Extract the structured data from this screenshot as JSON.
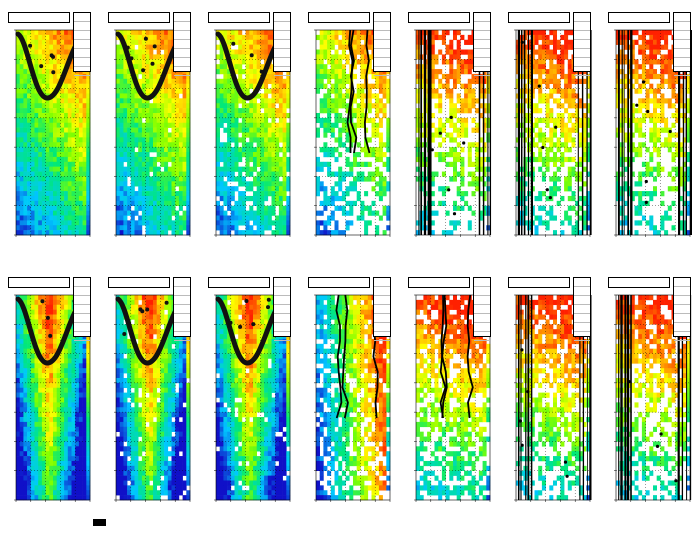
{
  "chart_data": [
    {
      "type": "heatmap",
      "colormap": "rainbow",
      "hot_region": "top-right",
      "overlay": "curve",
      "sparsity": 0.0
    },
    {
      "type": "heatmap",
      "colormap": "rainbow",
      "hot_region": "top-right",
      "overlay": "curve",
      "sparsity": 0.05
    },
    {
      "type": "heatmap",
      "colormap": "rainbow",
      "hot_region": "top-right",
      "overlay": "curve",
      "sparsity": 0.1
    },
    {
      "type": "heatmap",
      "colormap": "rainbow",
      "hot_region": "top-right",
      "overlay": "vertical",
      "sparsity": 0.35
    },
    {
      "type": "heatmap",
      "colormap": "rainbow",
      "hot_region": "top",
      "overlay": "stripes",
      "sparsity": 0.45
    },
    {
      "type": "heatmap",
      "colormap": "rainbow",
      "hot_region": "top",
      "overlay": "stripes",
      "sparsity": 0.4
    },
    {
      "type": "heatmap",
      "colormap": "rainbow",
      "hot_region": "top",
      "overlay": "stripes",
      "sparsity": 0.45
    },
    {
      "type": "heatmap",
      "colormap": "rainbow",
      "hot_region": "center",
      "overlay": "curve",
      "sparsity": 0.0
    },
    {
      "type": "heatmap",
      "colormap": "rainbow",
      "hot_region": "center",
      "overlay": "curve",
      "sparsity": 0.05
    },
    {
      "type": "heatmap",
      "colormap": "rainbow",
      "hot_region": "center",
      "overlay": "curve",
      "sparsity": 0.05
    },
    {
      "type": "heatmap",
      "colormap": "rainbow",
      "hot_region": "right",
      "overlay": "vertical",
      "sparsity": 0.25
    },
    {
      "type": "heatmap",
      "colormap": "rainbow",
      "hot_region": "top",
      "overlay": "vertical",
      "sparsity": 0.35
    },
    {
      "type": "heatmap",
      "colormap": "rainbow",
      "hot_region": "top",
      "overlay": "stripes",
      "sparsity": 0.4
    },
    {
      "type": "heatmap",
      "colormap": "rainbow",
      "hot_region": "top",
      "overlay": "stripes",
      "sparsity": 0.45
    }
  ]
}
